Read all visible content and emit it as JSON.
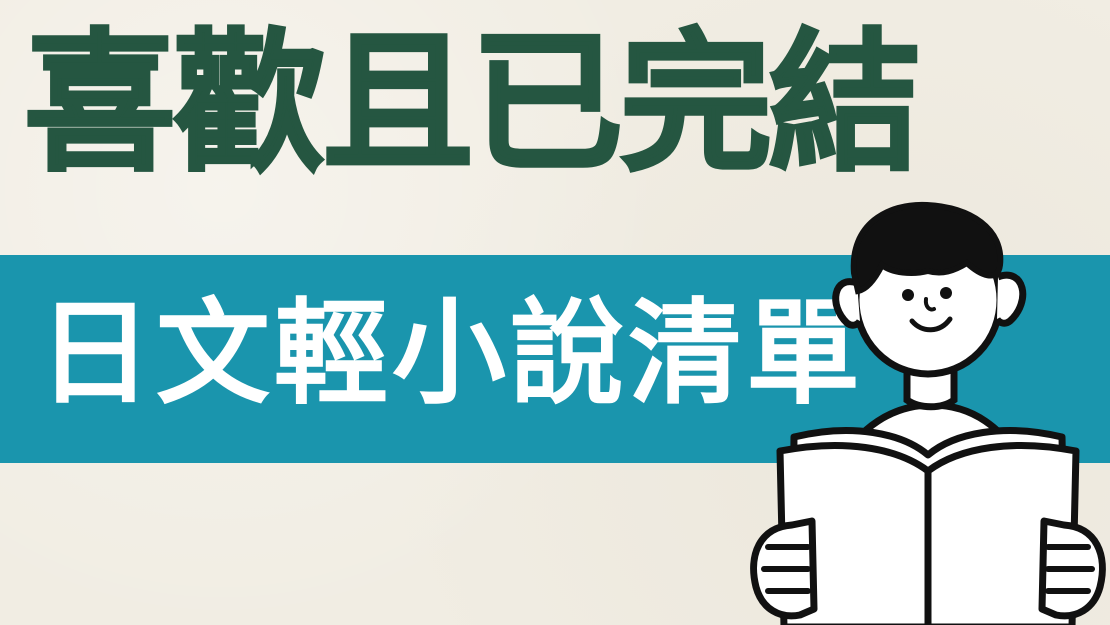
{
  "title": "喜歡且已完結",
  "subtitle": "日文輕小說清單",
  "colors": {
    "background": "#f1ede3",
    "title_text": "#255641",
    "band": "#1a95ad",
    "subtitle_text": "#ffffff",
    "outline": "#111111"
  },
  "illustration": {
    "icon": "person-reading-book-icon"
  }
}
